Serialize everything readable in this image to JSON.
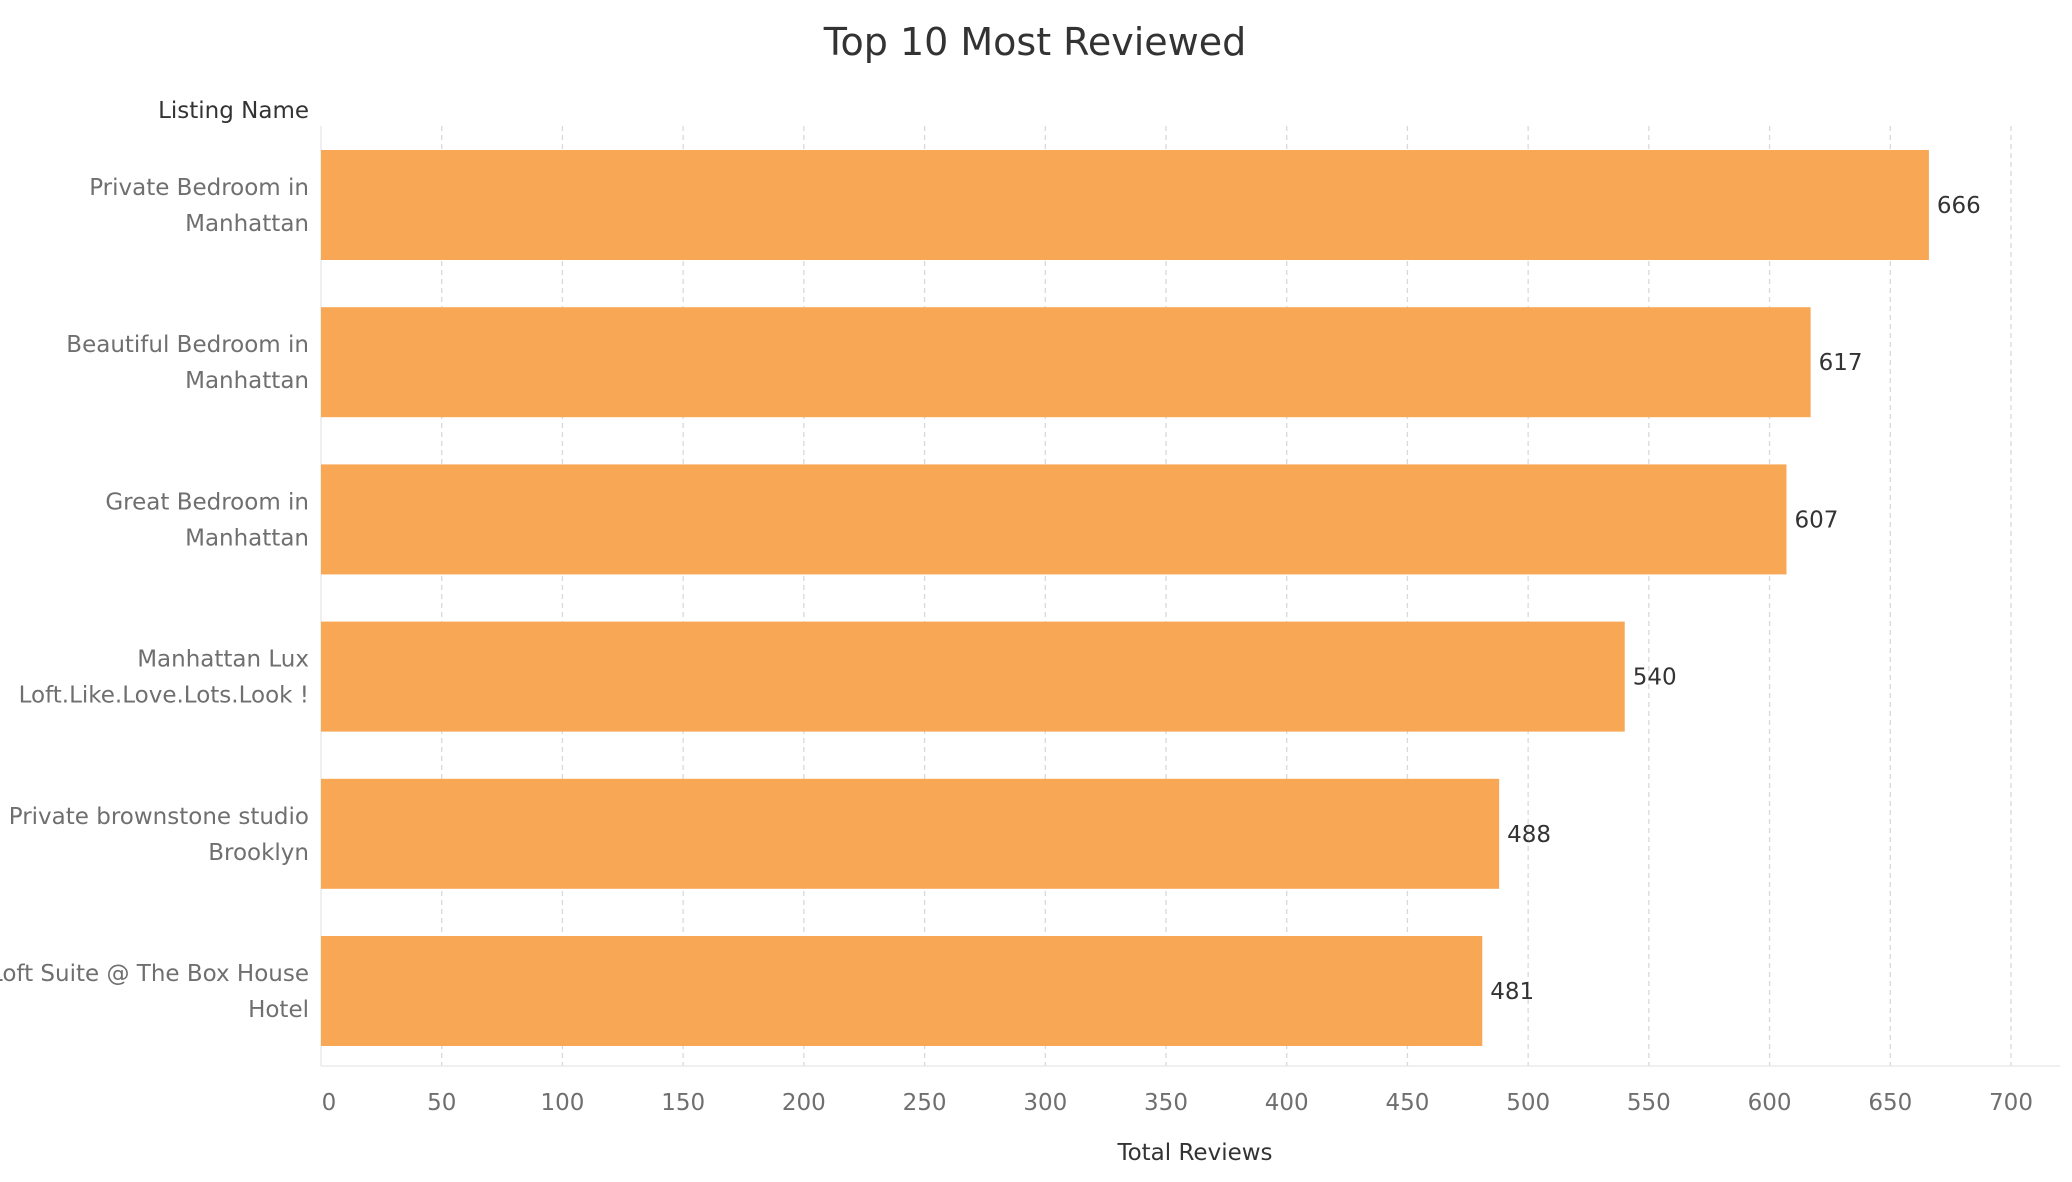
{
  "chart_data": {
    "type": "bar",
    "orientation": "horizontal",
    "title": "Top 10 Most Reviewed",
    "row_header": "Listing Name",
    "xlabel": "Total Reviews",
    "categories": [
      [
        "Private Bedroom in",
        "Manhattan"
      ],
      [
        "Beautiful Bedroom in",
        "Manhattan"
      ],
      [
        "Great Bedroom in",
        "Manhattan"
      ],
      [
        "Manhattan Lux",
        "Loft.Like.Love.Lots.Look !"
      ],
      [
        "Private brownstone studio",
        "Brooklyn"
      ],
      [
        "Loft Suite @ The Box House",
        "Hotel"
      ]
    ],
    "values": [
      666,
      617,
      607,
      540,
      488,
      481
    ],
    "value_labels": [
      "666",
      "617",
      "607",
      "540",
      "488",
      "481"
    ],
    "xlim": [
      0,
      700
    ],
    "xticks": [
      0,
      50,
      100,
      150,
      200,
      250,
      300,
      350,
      400,
      450,
      500,
      550,
      600,
      650,
      700
    ],
    "xtick_labels": [
      "0",
      "50",
      "100",
      "150",
      "200",
      "250",
      "300",
      "350",
      "400",
      "450",
      "500",
      "550",
      "600",
      "650",
      "700"
    ],
    "grid": "vertical-dashed",
    "bar_color": "#F8A755"
  }
}
